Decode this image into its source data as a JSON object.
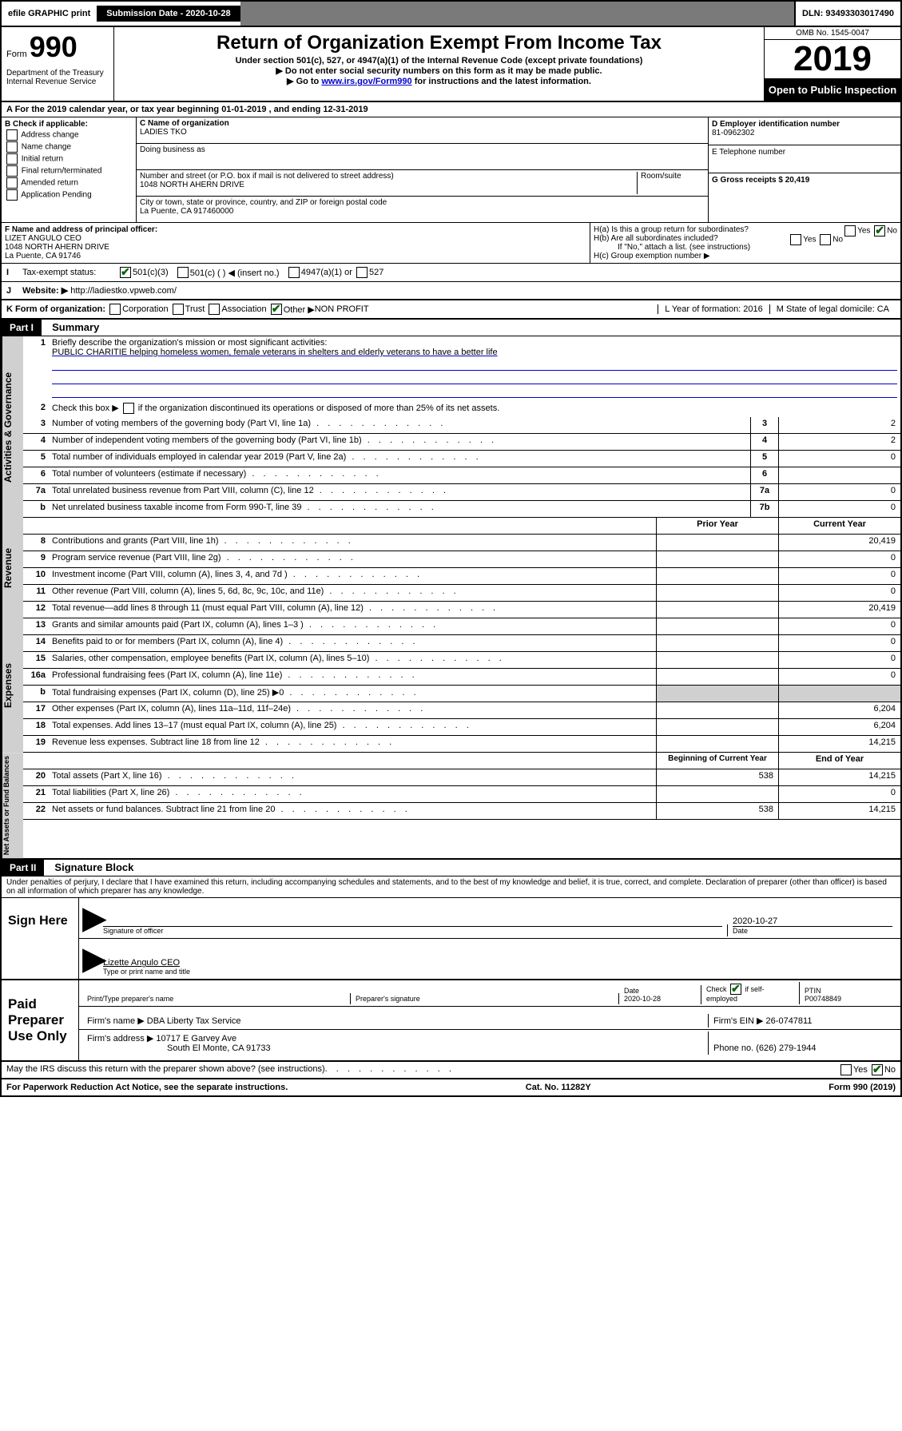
{
  "topbar": {
    "efile": "efile GRAPHIC print",
    "submission_label": "Submission Date - 2020-10-28",
    "dln": "DLN: 93493303017490"
  },
  "header": {
    "form_label": "Form",
    "form_num": "990",
    "title": "Return of Organization Exempt From Income Tax",
    "subtitle1": "Under section 501(c), 527, or 4947(a)(1) of the Internal Revenue Code (except private foundations)",
    "subtitle2": "▶ Do not enter social security numbers on this form as it may be made public.",
    "subtitle3_a": "▶ Go to ",
    "subtitle3_link": "www.irs.gov/Form990",
    "subtitle3_b": " for instructions and the latest information.",
    "dept": "Department of the Treasury\nInternal Revenue Service",
    "omb": "OMB No. 1545-0047",
    "year": "2019",
    "open": "Open to Public Inspection"
  },
  "period": "A For the 2019 calendar year, or tax year beginning 01-01-2019     , and ending 12-31-2019",
  "boxB": {
    "title": "B Check if applicable:",
    "items": [
      "Address change",
      "Name change",
      "Initial return",
      "Final return/terminated",
      "Amended return",
      "Application Pending"
    ]
  },
  "boxC": {
    "name_label": "C Name of organization",
    "name": "LADIES TKO",
    "dba_label": "Doing business as",
    "addr_label": "Number and street (or P.O. box if mail is not delivered to street address)",
    "room_label": "Room/suite",
    "addr": "1048 NORTH AHERN DRIVE",
    "city_label": "City or town, state or province, country, and ZIP or foreign postal code",
    "city": "La Puente, CA  917460000"
  },
  "boxD": {
    "label": "D Employer identification number",
    "val": "81-0962302"
  },
  "boxE": {
    "label": "E Telephone number"
  },
  "boxG": {
    "label": "G Gross receipts $ 20,419"
  },
  "boxF": {
    "label": "F  Name and address of principal officer:",
    "name": "LIZET ANGULO CEO",
    "addr1": "1048 NORTH AHERN DRIVE",
    "addr2": "La Puente, CA  91746"
  },
  "boxH": {
    "ha": "H(a)  Is this a group return for subordinates?",
    "hb": "H(b)  Are all subordinates included?",
    "hb_note": "If \"No,\" attach a list. (see instructions)",
    "hc": "H(c)  Group exemption number ▶"
  },
  "status": {
    "label": "Tax-exempt status:",
    "opt1": "501(c)(3)",
    "opt2": "501(c) (   ) ◀ (insert no.)",
    "opt3": "4947(a)(1) or",
    "opt4": "527"
  },
  "website": {
    "label": "Website: ▶",
    "url": "http://ladiestko.vpweb.com/"
  },
  "kform": {
    "label": "K Form of organization:",
    "opts": [
      "Corporation",
      "Trust",
      "Association",
      "Other ▶"
    ],
    "other_val": "NON PROFIT",
    "l_label": "L Year of formation: 2016",
    "m_label": "M State of legal domicile: CA"
  },
  "part1": {
    "header": "Part I",
    "title": "Summary",
    "q1": "Briefly describe the organization's mission or most significant activities:",
    "mission": "PUBLIC CHARITIE helping homeless women, female veterans in shelters and elderly veterans to have a better life",
    "q2": "Check this box ▶       if the organization discontinued its operations or disposed of more than 25% of its net assets.",
    "lines_gov": [
      {
        "n": "3",
        "t": "Number of voting members of the governing body (Part VI, line 1a)",
        "box": "3",
        "v": "2"
      },
      {
        "n": "4",
        "t": "Number of independent voting members of the governing body (Part VI, line 1b)",
        "box": "4",
        "v": "2"
      },
      {
        "n": "5",
        "t": "Total number of individuals employed in calendar year 2019 (Part V, line 2a)",
        "box": "5",
        "v": "0"
      },
      {
        "n": "6",
        "t": "Total number of volunteers (estimate if necessary)",
        "box": "6",
        "v": ""
      },
      {
        "n": "7a",
        "t": "Total unrelated business revenue from Part VIII, column (C), line 12",
        "box": "7a",
        "v": "0"
      },
      {
        "n": "b",
        "t": "Net unrelated business taxable income from Form 990-T, line 39",
        "box": "7b",
        "v": "0"
      }
    ],
    "col_prior": "Prior Year",
    "col_current": "Current Year",
    "lines_rev": [
      {
        "n": "8",
        "t": "Contributions and grants (Part VIII, line 1h)",
        "p": "",
        "c": "20,419"
      },
      {
        "n": "9",
        "t": "Program service revenue (Part VIII, line 2g)",
        "p": "",
        "c": "0"
      },
      {
        "n": "10",
        "t": "Investment income (Part VIII, column (A), lines 3, 4, and 7d )",
        "p": "",
        "c": "0"
      },
      {
        "n": "11",
        "t": "Other revenue (Part VIII, column (A), lines 5, 6d, 8c, 9c, 10c, and 11e)",
        "p": "",
        "c": "0"
      },
      {
        "n": "12",
        "t": "Total revenue—add lines 8 through 11 (must equal Part VIII, column (A), line 12)",
        "p": "",
        "c": "20,419"
      }
    ],
    "lines_exp": [
      {
        "n": "13",
        "t": "Grants and similar amounts paid (Part IX, column (A), lines 1–3 )",
        "p": "",
        "c": "0"
      },
      {
        "n": "14",
        "t": "Benefits paid to or for members (Part IX, column (A), line 4)",
        "p": "",
        "c": "0"
      },
      {
        "n": "15",
        "t": "Salaries, other compensation, employee benefits (Part IX, column (A), lines 5–10)",
        "p": "",
        "c": "0"
      },
      {
        "n": "16a",
        "t": "Professional fundraising fees (Part IX, column (A), line 11e)",
        "p": "",
        "c": "0"
      },
      {
        "n": "b",
        "t": "Total fundraising expenses (Part IX, column (D), line 25) ▶0",
        "p": "shaded",
        "c": "shaded"
      },
      {
        "n": "17",
        "t": "Other expenses (Part IX, column (A), lines 11a–11d, 11f–24e)",
        "p": "",
        "c": "6,204"
      },
      {
        "n": "18",
        "t": "Total expenses. Add lines 13–17 (must equal Part IX, column (A), line 25)",
        "p": "",
        "c": "6,204"
      },
      {
        "n": "19",
        "t": "Revenue less expenses. Subtract line 18 from line 12",
        "p": "",
        "c": "14,215"
      }
    ],
    "col_begin": "Beginning of Current Year",
    "col_end": "End of Year",
    "lines_net": [
      {
        "n": "20",
        "t": "Total assets (Part X, line 16)",
        "p": "538",
        "c": "14,215"
      },
      {
        "n": "21",
        "t": "Total liabilities (Part X, line 26)",
        "p": "",
        "c": "0"
      },
      {
        "n": "22",
        "t": "Net assets or fund balances. Subtract line 21 from line 20",
        "p": "538",
        "c": "14,215"
      }
    ]
  },
  "part2": {
    "header": "Part II",
    "title": "Signature Block",
    "perjury": "Under penalties of perjury, I declare that I have examined this return, including accompanying schedules and statements, and to the best of my knowledge and belief, it is true, correct, and complete. Declaration of preparer (other than officer) is based on all information of which preparer has any knowledge.",
    "sign_here": "Sign Here",
    "sig_officer": "Signature of officer",
    "sig_date": "2020-10-27",
    "date_label": "Date",
    "officer_name": "Lizette Angulo CEO",
    "type_label": "Type or print name and title"
  },
  "paid": {
    "label": "Paid Preparer Use Only",
    "h_name": "Print/Type preparer's name",
    "h_sig": "Preparer's signature",
    "h_date": "Date",
    "date": "2020-10-28",
    "check_label": "Check       if self-employed",
    "ptin_label": "PTIN",
    "ptin": "P00748849",
    "firm_label": "Firm's name    ▶",
    "firm": "DBA Liberty Tax Service",
    "ein_label": "Firm's EIN ▶ 26-0747811",
    "addr_label": "Firm's address ▶",
    "addr1": "10717 E Garvey Ave",
    "addr2": "South El Monte, CA  91733",
    "phone": "Phone no. (626) 279-1944",
    "discuss": "May the IRS discuss this return with the preparer shown above? (see instructions)"
  },
  "footer": {
    "left": "For Paperwork Reduction Act Notice, see the separate instructions.",
    "mid": "Cat. No. 11282Y",
    "right": "Form 990 (2019)"
  },
  "yes": "Yes",
  "no": "No"
}
